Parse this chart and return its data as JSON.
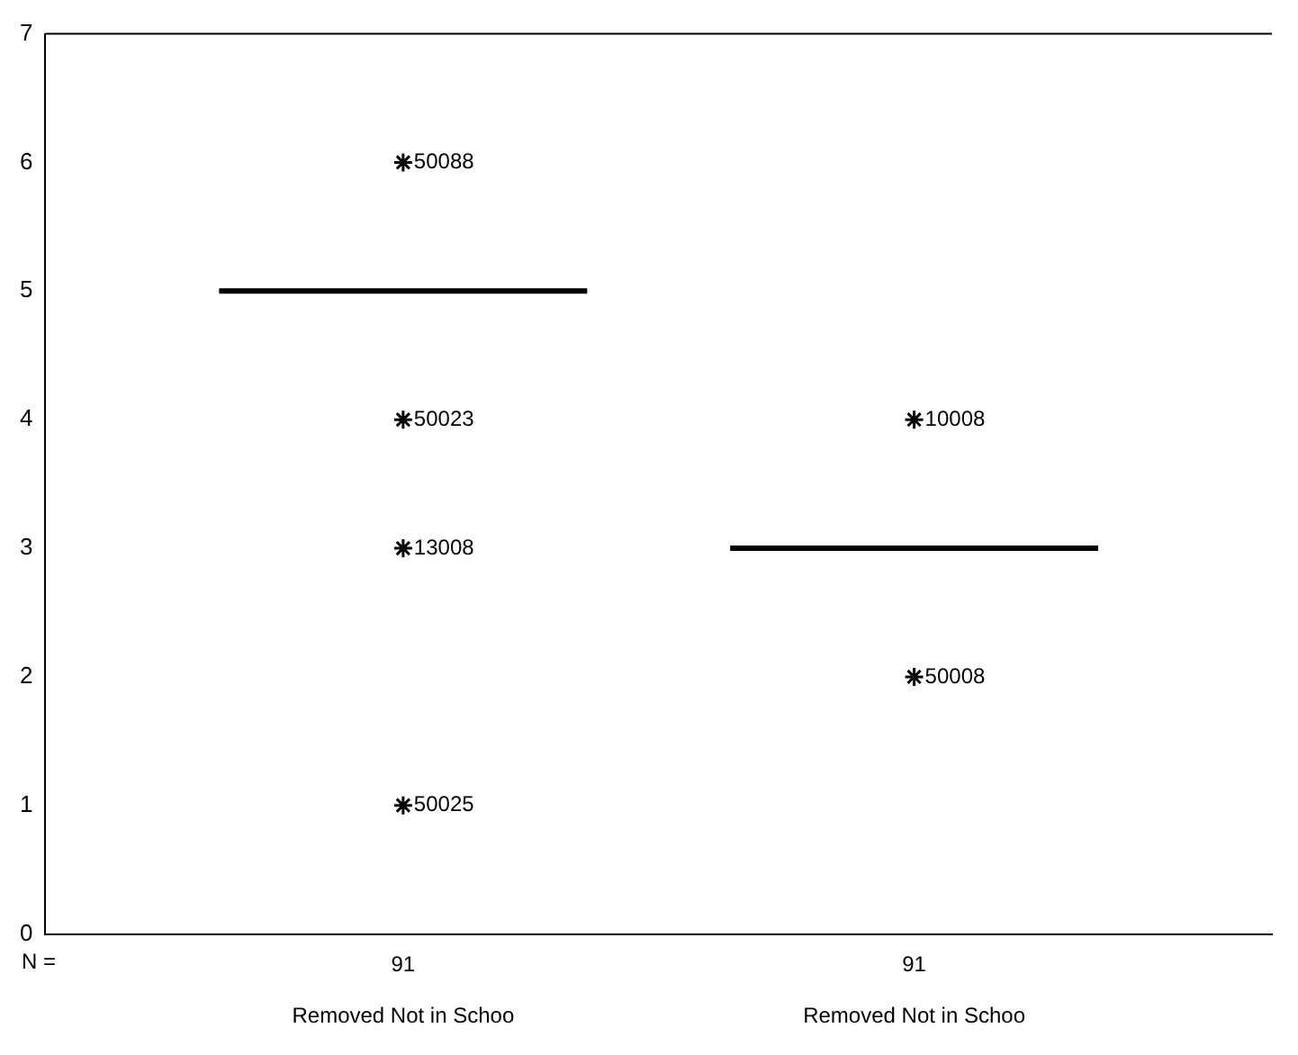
{
  "chart_data": {
    "type": "box",
    "categories": [
      "Removed Not in Schoo",
      "Removed Not in Schoo"
    ],
    "boxes": [
      {
        "low": 5,
        "q1": 5,
        "median": 5,
        "q3": 5,
        "high": 5,
        "outliers": [
          6,
          4,
          3,
          1
        ]
      },
      {
        "low": 3,
        "q1": 3,
        "median": 3,
        "q3": 3,
        "high": 3,
        "outliers": [
          4,
          2
        ]
      }
    ],
    "color": "#000000",
    "marker": "star",
    "ylim": [
      0,
      7
    ],
    "yticks": [
      0,
      1,
      2,
      3,
      4,
      5,
      6,
      7
    ],
    "grid": false,
    "annotations": [
      "N =",
      "91",
      "91",
      "50088",
      "50023",
      "13008",
      "50025",
      "10008",
      "50008"
    ]
  }
}
